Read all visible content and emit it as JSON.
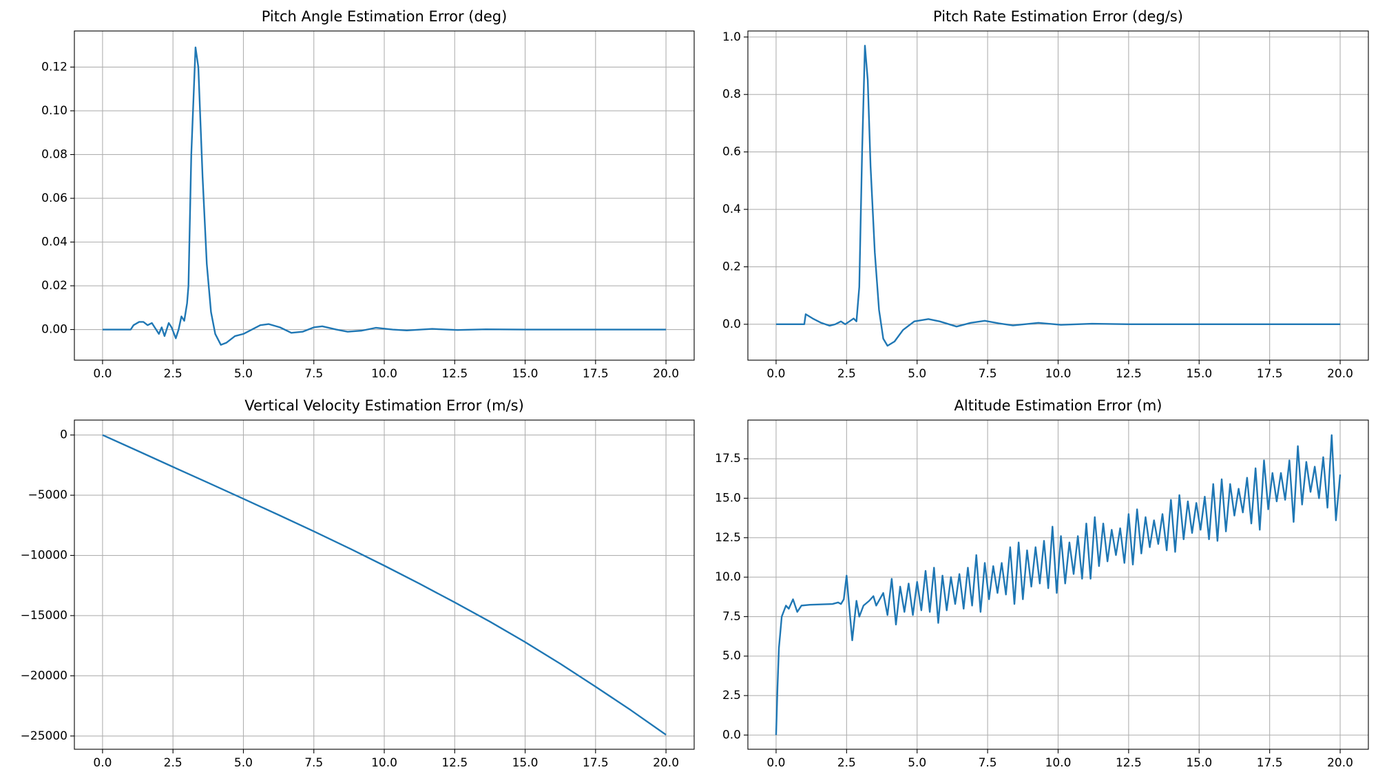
{
  "chart_data": [
    {
      "type": "line",
      "title": "Pitch Angle Estimation Error (deg)",
      "color": "#1f77b4",
      "grid": true,
      "xlim": [
        -1,
        21
      ],
      "ylim": [
        -0.014,
        0.1365
      ],
      "xticks": [
        {
          "value": 0,
          "label": "0.0"
        },
        2.5,
        {
          "value": 5,
          "label": "5.0"
        },
        7.5,
        {
          "value": 10,
          "label": "10.0"
        },
        12.5,
        {
          "value": 15,
          "label": "15.0"
        },
        17.5,
        {
          "value": 20,
          "label": "20.0"
        }
      ],
      "yticks": [
        {
          "value": 0,
          "label": "0.00"
        },
        0.02,
        0.04,
        0.06,
        0.08,
        {
          "value": 0.1,
          "label": "0.10"
        },
        0.12
      ],
      "x": [
        0,
        1,
        1.1,
        1.3,
        1.45,
        1.6,
        1.75,
        1.9,
        2.0,
        2.1,
        2.2,
        2.35,
        2.45,
        2.6,
        2.7,
        2.8,
        2.9,
        3.0,
        3.05,
        3.15,
        3.3,
        3.4,
        3.55,
        3.7,
        3.85,
        4.0,
        4.2,
        4.4,
        4.7,
        5.0,
        5.3,
        5.6,
        5.9,
        6.3,
        6.7,
        7.1,
        7.5,
        7.8,
        8.3,
        8.7,
        9.2,
        9.7,
        10.3,
        10.8,
        11.7,
        12.6,
        13.6,
        15,
        20
      ],
      "values": [
        0,
        0,
        0.002,
        0.0035,
        0.0035,
        0.002,
        0.003,
        0,
        -0.002,
        0.001,
        -0.003,
        0.003,
        0.001,
        -0.004,
        0,
        0.006,
        0.004,
        0.012,
        0.02,
        0.08,
        0.129,
        0.12,
        0.07,
        0.03,
        0.008,
        -0.002,
        -0.007,
        -0.006,
        -0.003,
        -0.002,
        0,
        0.002,
        0.0025,
        0.001,
        -0.0015,
        -0.001,
        0.001,
        0.0015,
        0,
        -0.001,
        -0.0005,
        0.0008,
        0,
        -0.0004,
        0.0003,
        -0.0002,
        0.0001,
        0,
        0
      ]
    },
    {
      "type": "line",
      "title": "Pitch Rate Estimation Error (deg/s)",
      "color": "#1f77b4",
      "grid": true,
      "xlim": [
        -1,
        21
      ],
      "ylim": [
        -0.125,
        1.021
      ],
      "xticks": [
        {
          "value": 0,
          "label": "0.0"
        },
        2.5,
        {
          "value": 5,
          "label": "5.0"
        },
        7.5,
        {
          "value": 10,
          "label": "10.0"
        },
        12.5,
        {
          "value": 15,
          "label": "15.0"
        },
        17.5,
        {
          "value": 20,
          "label": "20.0"
        }
      ],
      "yticks": [
        {
          "value": 0,
          "label": "0.0"
        },
        0.2,
        0.4,
        0.6,
        0.8,
        {
          "value": 1,
          "label": "1.0"
        }
      ],
      "x": [
        0,
        1.0,
        1.05,
        1.3,
        1.6,
        1.9,
        2.1,
        2.3,
        2.45,
        2.6,
        2.75,
        2.85,
        2.95,
        3.05,
        3.15,
        3.25,
        3.35,
        3.5,
        3.65,
        3.8,
        3.95,
        4.2,
        4.5,
        4.9,
        5.4,
        5.8,
        6.4,
        6.9,
        7.4,
        7.9,
        8.4,
        9.3,
        10.1,
        11.2,
        12.5,
        20
      ],
      "values": [
        0,
        0,
        0.035,
        0.02,
        0.005,
        -0.005,
        0,
        0.01,
        0,
        0.01,
        0.02,
        0.01,
        0.13,
        0.6,
        0.97,
        0.85,
        0.55,
        0.25,
        0.05,
        -0.05,
        -0.075,
        -0.06,
        -0.02,
        0.01,
        0.018,
        0.01,
        -0.008,
        0.005,
        0.012,
        0.003,
        -0.004,
        0.005,
        -0.002,
        0.002,
        0,
        0
      ]
    },
    {
      "type": "line",
      "title": "Vertical Velocity Estimation Error (m/s)",
      "color": "#1f77b4",
      "grid": true,
      "xlim": [
        -1,
        21
      ],
      "ylim": [
        -26100,
        1240
      ],
      "xticks": [
        {
          "value": 0,
          "label": "0.0"
        },
        2.5,
        {
          "value": 5,
          "label": "5.0"
        },
        7.5,
        {
          "value": 10,
          "label": "10.0"
        },
        12.5,
        {
          "value": 15,
          "label": "15.0"
        },
        17.5,
        {
          "value": 20,
          "label": "20.0"
        }
      ],
      "yticks": [
        {
          "value": -25000,
          "label": "−25000"
        },
        {
          "value": -20000,
          "label": "−20000"
        },
        {
          "value": -15000,
          "label": "−15000"
        },
        {
          "value": -10000,
          "label": "−10000"
        },
        {
          "value": -5000,
          "label": "−5000"
        },
        0
      ],
      "x": [
        0,
        1.25,
        2.5,
        3.75,
        5,
        6.25,
        7.5,
        8.75,
        10,
        11.25,
        12.5,
        13.75,
        15,
        16.25,
        17.5,
        18.75,
        20
      ],
      "values": [
        0,
        -1320,
        -2650,
        -3970,
        -5300,
        -6640,
        -8000,
        -9400,
        -10850,
        -12350,
        -13900,
        -15500,
        -17200,
        -19000,
        -20900,
        -22850,
        -24900
      ]
    },
    {
      "type": "line",
      "title": "Altitude Estimation Error (m)",
      "color": "#1f77b4",
      "grid": true,
      "xlim": [
        -1,
        21
      ],
      "ylim": [
        -0.9,
        19.95
      ],
      "xticks": [
        {
          "value": 0,
          "label": "0.0"
        },
        2.5,
        {
          "value": 5,
          "label": "5.0"
        },
        7.5,
        {
          "value": 10,
          "label": "10.0"
        },
        12.5,
        {
          "value": 15,
          "label": "15.0"
        },
        17.5,
        {
          "value": 20,
          "label": "20.0"
        }
      ],
      "yticks": [
        {
          "value": 0,
          "label": "0.0"
        },
        2.5,
        {
          "value": 5,
          "label": "5.0"
        },
        7.5,
        {
          "value": 10,
          "label": "10.0"
        },
        12.5,
        {
          "value": 15,
          "label": "15.0"
        },
        17.5
      ],
      "x": [
        0,
        0.05,
        0.1,
        0.2,
        0.35,
        0.45,
        0.6,
        0.75,
        0.9,
        1.2,
        2.0,
        2.2,
        2.3,
        2.4,
        2.5,
        2.6,
        2.7,
        2.85,
        2.95,
        3.1,
        3.3,
        3.45,
        3.55,
        3.8,
        3.95,
        4.1,
        4.25,
        4.4,
        4.55,
        4.7,
        4.85,
        5.0,
        5.15,
        5.3,
        5.45,
        5.6,
        5.75,
        5.9,
        6.05,
        6.2,
        6.35,
        6.5,
        6.65,
        6.8,
        6.95,
        7.1,
        7.25,
        7.4,
        7.55,
        7.7,
        7.85,
        8.0,
        8.15,
        8.3,
        8.45,
        8.6,
        8.75,
        8.9,
        9.05,
        9.2,
        9.35,
        9.5,
        9.65,
        9.8,
        9.95,
        10.1,
        10.25,
        10.4,
        10.55,
        10.7,
        10.85,
        11.0,
        11.15,
        11.3,
        11.45,
        11.6,
        11.75,
        11.9,
        12.05,
        12.2,
        12.35,
        12.5,
        12.65,
        12.8,
        12.95,
        13.1,
        13.25,
        13.4,
        13.55,
        13.7,
        13.85,
        14.0,
        14.15,
        14.3,
        14.45,
        14.6,
        14.75,
        14.9,
        15.05,
        15.2,
        15.35,
        15.5,
        15.65,
        15.8,
        15.95,
        16.1,
        16.25,
        16.4,
        16.55,
        16.7,
        16.85,
        17.0,
        17.15,
        17.3,
        17.45,
        17.6,
        17.75,
        17.9,
        18.05,
        18.2,
        18.35,
        18.5,
        18.65,
        18.8,
        18.95,
        19.1,
        19.25,
        19.4,
        19.55,
        19.7,
        19.85,
        20.0
      ],
      "values": [
        0,
        3,
        5.5,
        7.5,
        8.2,
        8.0,
        8.6,
        7.8,
        8.2,
        8.25,
        8.3,
        8.4,
        8.3,
        8.6,
        10.1,
        8,
        6,
        8.5,
        7.5,
        8.2,
        8.5,
        8.8,
        8.2,
        9.0,
        7.6,
        9.9,
        7.0,
        9.4,
        7.8,
        9.6,
        7.6,
        9.7,
        7.9,
        10.4,
        7.8,
        10.6,
        7.1,
        10.1,
        7.9,
        10.0,
        8.3,
        10.2,
        8.0,
        10.6,
        8.2,
        11.4,
        7.8,
        10.9,
        8.6,
        10.7,
        9.0,
        10.9,
        8.9,
        11.9,
        8.3,
        12.2,
        8.6,
        11.7,
        9.4,
        11.9,
        9.6,
        12.3,
        9.3,
        13.2,
        9.0,
        12.6,
        9.6,
        12.2,
        10.2,
        12.6,
        9.9,
        13.4,
        9.9,
        13.8,
        10.7,
        13.4,
        11.0,
        13.0,
        11.4,
        13.1,
        10.9,
        14.0,
        10.8,
        14.3,
        11.5,
        13.8,
        11.9,
        13.6,
        12.1,
        14.0,
        11.7,
        14.9,
        11.6,
        15.2,
        12.4,
        14.8,
        12.8,
        14.7,
        13.0,
        15.1,
        12.4,
        15.9,
        12.3,
        16.2,
        12.9,
        15.9,
        13.9,
        15.6,
        14.1,
        16.3,
        13.4,
        16.9,
        13.0,
        17.4,
        14.3,
        16.6,
        14.8,
        16.6,
        14.9,
        17.4,
        13.5,
        18.3,
        14.6,
        17.3,
        15.4,
        17.0,
        15.0,
        17.6,
        14.4,
        19.0,
        13.6,
        16.5
      ]
    }
  ]
}
